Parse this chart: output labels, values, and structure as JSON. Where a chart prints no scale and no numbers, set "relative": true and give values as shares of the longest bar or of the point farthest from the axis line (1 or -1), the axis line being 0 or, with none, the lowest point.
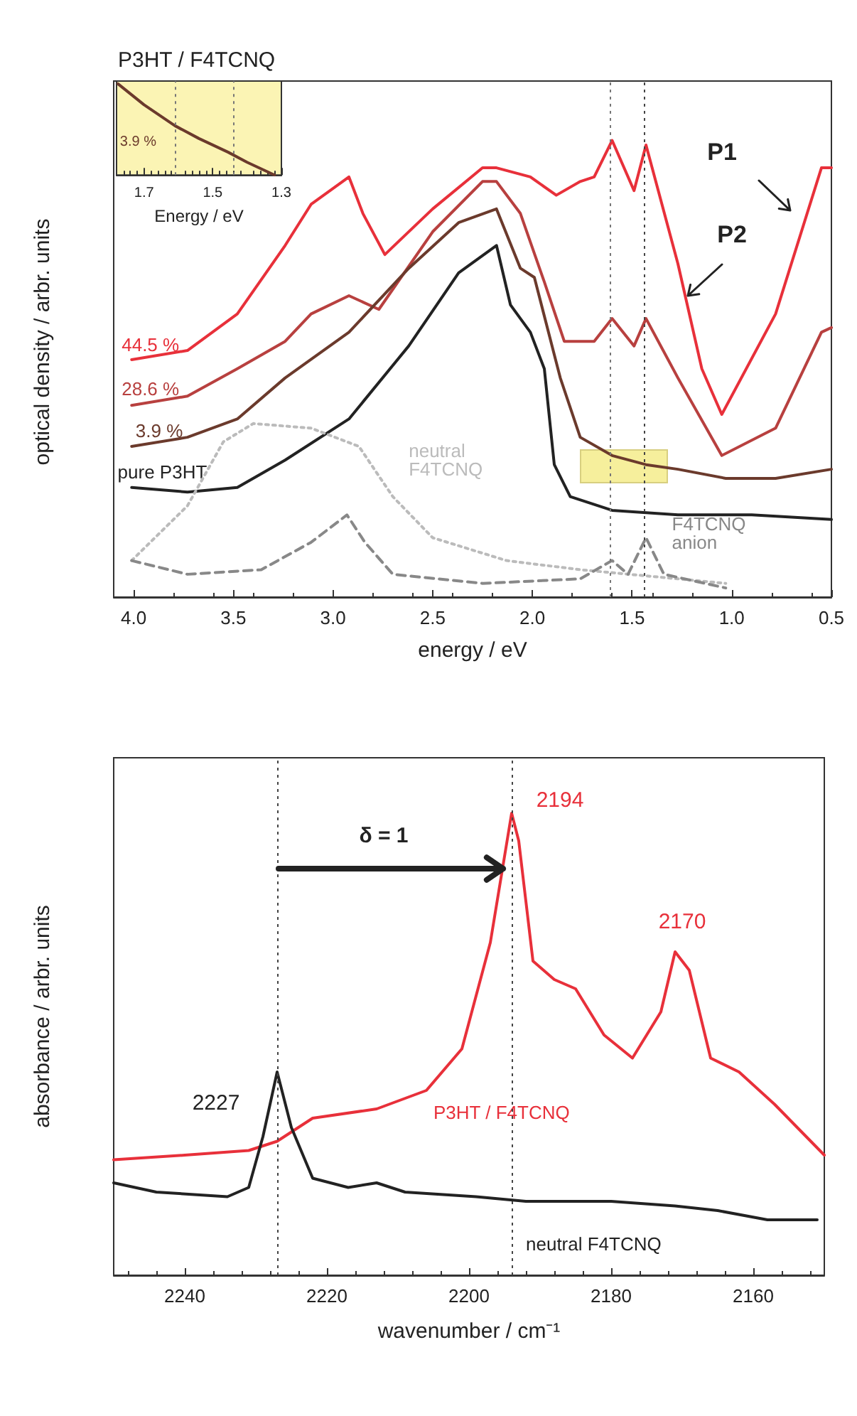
{
  "chart_data": [
    {
      "type": "line",
      "title": "P3HT / F4TCNQ",
      "xlabel": "energy / eV",
      "ylabel": "optical density / arbr. units",
      "relative": true,
      "xlim": [
        4.1,
        0.5
      ],
      "xticks": [
        {
          "value": 4,
          "label": "4.0"
        },
        3.5,
        {
          "value": 3,
          "label": "3.0"
        },
        2.5,
        {
          "value": 2,
          "label": "2.0"
        },
        1.5,
        {
          "value": 1,
          "label": "1.0"
        },
        0.5
      ],
      "tick_labels": "x",
      "legend": false,
      "grid": false,
      "marker": "none",
      "line_style": "solid",
      "series": [
        {
          "name": "44.5 %",
          "color": "#e8303a",
          "x": [
            4.01,
            3.73,
            3.48,
            3.24,
            3.11,
            2.92,
            2.85,
            2.74,
            2.5,
            2.25,
            2.18,
            2.01,
            1.88,
            1.76,
            1.69,
            1.6,
            1.49,
            1.43,
            1.27,
            1.15,
            1.05,
            0.78,
            0.55,
            0.5
          ],
          "values": [
            0.52,
            0.54,
            0.62,
            0.77,
            0.86,
            0.92,
            0.84,
            0.75,
            0.85,
            0.94,
            0.94,
            0.92,
            0.88,
            0.91,
            0.92,
            1.0,
            0.89,
            0.99,
            0.73,
            0.5,
            0.4,
            0.62,
            0.94,
            0.94
          ]
        },
        {
          "name": "28.6 %",
          "color": "#b8403f",
          "x": [
            4.01,
            3.73,
            3.48,
            3.24,
            3.11,
            2.92,
            2.77,
            2.5,
            2.25,
            2.18,
            2.06,
            1.94,
            1.84,
            1.69,
            1.6,
            1.49,
            1.43,
            1.27,
            1.05,
            0.78,
            0.55,
            0.5
          ],
          "values": [
            0.42,
            0.44,
            0.5,
            0.56,
            0.62,
            0.66,
            0.63,
            0.8,
            0.91,
            0.91,
            0.84,
            0.69,
            0.56,
            0.56,
            0.61,
            0.55,
            0.61,
            0.48,
            0.31,
            0.37,
            0.58,
            0.59
          ]
        },
        {
          "name": "3.9 %",
          "color": "#6b3a2c",
          "x": [
            4.01,
            3.73,
            3.48,
            3.24,
            2.92,
            2.62,
            2.37,
            2.18,
            2.06,
            1.99,
            1.86,
            1.76,
            1.6,
            1.43,
            1.27,
            1.03,
            0.78,
            0.5
          ],
          "values": [
            0.33,
            0.35,
            0.39,
            0.48,
            0.58,
            0.72,
            0.82,
            0.85,
            0.72,
            0.7,
            0.48,
            0.35,
            0.31,
            0.29,
            0.28,
            0.26,
            0.26,
            0.28
          ]
        },
        {
          "name": "pure P3HT",
          "color": "#222222",
          "x": [
            4.01,
            3.73,
            3.48,
            3.24,
            2.92,
            2.62,
            2.37,
            2.18,
            2.11,
            2.01,
            1.94,
            1.89,
            1.81,
            1.6,
            1.27,
            0.9,
            0.5
          ],
          "values": [
            0.24,
            0.23,
            0.24,
            0.3,
            0.39,
            0.55,
            0.71,
            0.77,
            0.64,
            0.58,
            0.5,
            0.29,
            0.22,
            0.19,
            0.18,
            0.18,
            0.17
          ]
        },
        {
          "name": "neutral F4TCNQ",
          "color": "#bbbbbb",
          "line_style": "dotted",
          "x": [
            4.01,
            3.73,
            3.55,
            3.4,
            3.11,
            2.87,
            2.7,
            2.5,
            2.13,
            1.76,
            1.27,
            1.03
          ],
          "values": [
            0.08,
            0.2,
            0.34,
            0.38,
            0.37,
            0.33,
            0.22,
            0.13,
            0.08,
            0.06,
            0.04,
            0.03
          ]
        },
        {
          "name": "F4TCNQ anion",
          "color": "#888888",
          "line_style": "dashed",
          "x": [
            4.01,
            3.73,
            3.36,
            3.11,
            2.93,
            2.84,
            2.7,
            2.25,
            1.76,
            1.6,
            1.52,
            1.43,
            1.34,
            1.03
          ],
          "values": [
            0.08,
            0.05,
            0.06,
            0.12,
            0.18,
            0.12,
            0.05,
            0.03,
            0.04,
            0.08,
            0.05,
            0.13,
            0.05,
            0.02
          ]
        }
      ],
      "ref_lines": [
        {
          "axis": "x",
          "value": 1.61,
          "color": "#777777",
          "line_style": "dotted"
        },
        {
          "axis": "x",
          "value": 1.44,
          "color": "#444444",
          "line_style": "dotted"
        }
      ],
      "annotations": [
        "P1",
        "P2"
      ]
    },
    {
      "type": "line",
      "xlabel": "Energy / eV",
      "relative": true,
      "xlim": [
        1.78,
        1.3
      ],
      "xticks": [
        1.7,
        1.5,
        1.3
      ],
      "tick_labels": "x",
      "legend": false,
      "grid": false,
      "marker": "none",
      "line_style": "solid",
      "series": [
        {
          "name": "3.9 %",
          "color": "#6b3a2c",
          "x": [
            1.776,
            1.7,
            1.61,
            1.54,
            1.455,
            1.4,
            1.32
          ],
          "values": [
            1.0,
            0.77,
            0.54,
            0.4,
            0.25,
            0.14,
            0
          ]
        }
      ],
      "ref_lines": [
        {
          "axis": "x",
          "value": 1.61,
          "color": "#777777",
          "line_style": "dotted"
        },
        {
          "axis": "x",
          "value": 1.44,
          "color": "#777777",
          "line_style": "dotted"
        }
      ]
    },
    {
      "type": "line",
      "xlabel": "wavenumber / cm⁻¹",
      "ylabel": "absorbance / arbr. units",
      "relative": true,
      "xlim": [
        2250,
        2150
      ],
      "xticks": [
        2240,
        2220,
        2200,
        2180,
        2160
      ],
      "tick_labels": "x",
      "legend": false,
      "grid": false,
      "marker": "none",
      "line_style": "solid",
      "series": [
        {
          "name": "P3HT / F4TCNQ",
          "color": "#e8303a",
          "x": [
            2250,
            2240,
            2231,
            2227,
            2222,
            2213,
            2206,
            2201,
            2197,
            2194,
            2193,
            2191,
            2188,
            2185,
            2181,
            2177,
            2173,
            2171,
            2169,
            2166,
            2162,
            2157,
            2150
          ],
          "values": [
            0.25,
            0.26,
            0.27,
            0.29,
            0.34,
            0.36,
            0.4,
            0.49,
            0.72,
            1.0,
            0.94,
            0.68,
            0.64,
            0.62,
            0.52,
            0.47,
            0.57,
            0.7,
            0.66,
            0.47,
            0.44,
            0.37,
            0.26
          ]
        },
        {
          "name": "neutral F4TCNQ",
          "color": "#222222",
          "x": [
            2250,
            2244,
            2234,
            2231,
            2229,
            2227,
            2225,
            2222,
            2217,
            2213,
            2209,
            2199,
            2192,
            2180,
            2171,
            2165,
            2158,
            2151
          ],
          "values": [
            0.2,
            0.18,
            0.17,
            0.19,
            0.3,
            0.44,
            0.32,
            0.21,
            0.19,
            0.2,
            0.18,
            0.17,
            0.16,
            0.16,
            0.15,
            0.14,
            0.12,
            0.12
          ]
        }
      ],
      "ref_lines": [
        {
          "axis": "x",
          "value": 2227,
          "color": "#444444",
          "line_style": "dotted"
        },
        {
          "axis": "x",
          "value": 2194,
          "color": "#444444",
          "line_style": "dotted"
        }
      ],
      "annotations": [
        {
          "text": "2194",
          "x": 2194,
          "y": 1.0
        },
        {
          "text": "2170",
          "x": 2170,
          "y": 0.7
        },
        {
          "text": "2227",
          "x": 2227,
          "y": 0.44
        },
        "δ = 1"
      ]
    }
  ]
}
